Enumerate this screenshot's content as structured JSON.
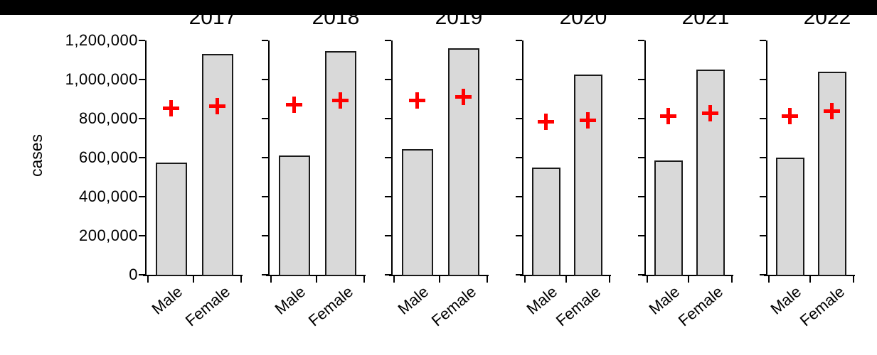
{
  "top_bar": {
    "color": "#000000"
  },
  "chart_data": {
    "type": "bar",
    "title": "",
    "ylabel": "cases",
    "xlabel": "",
    "ylim": [
      0,
      1200000
    ],
    "grid": false,
    "legend": "none",
    "categories": [
      "Male",
      "Female"
    ],
    "ytick_values": [
      1200000,
      1000000,
      800000,
      600000,
      400000,
      200000,
      0
    ],
    "ytick_labels": [
      "1,200,000",
      "1,000,000",
      "800,000",
      "600,000",
      "400,000",
      "200,000",
      "0"
    ],
    "bar_fill_color": "#d9d9d9",
    "bar_border_color": "#1a1a1a",
    "marker": {
      "symbol": "+",
      "color": "#ff0000"
    },
    "panels": [
      {
        "year": "2017",
        "bar_values": [
          575000,
          1130000
        ],
        "marker_values": [
          850000,
          860000
        ]
      },
      {
        "year": "2018",
        "bar_values": [
          610000,
          1145000
        ],
        "marker_values": [
          870000,
          890000
        ]
      },
      {
        "year": "2019",
        "bar_values": [
          645000,
          1160000
        ],
        "marker_values": [
          890000,
          910000
        ]
      },
      {
        "year": "2020",
        "bar_values": [
          550000,
          1025000
        ],
        "marker_values": [
          780000,
          790000
        ]
      },
      {
        "year": "2021",
        "bar_values": [
          585000,
          1050000
        ],
        "marker_values": [
          810000,
          825000
        ]
      },
      {
        "year": "2022",
        "bar_values": [
          600000,
          1040000
        ],
        "marker_values": [
          810000,
          835000
        ]
      }
    ]
  }
}
